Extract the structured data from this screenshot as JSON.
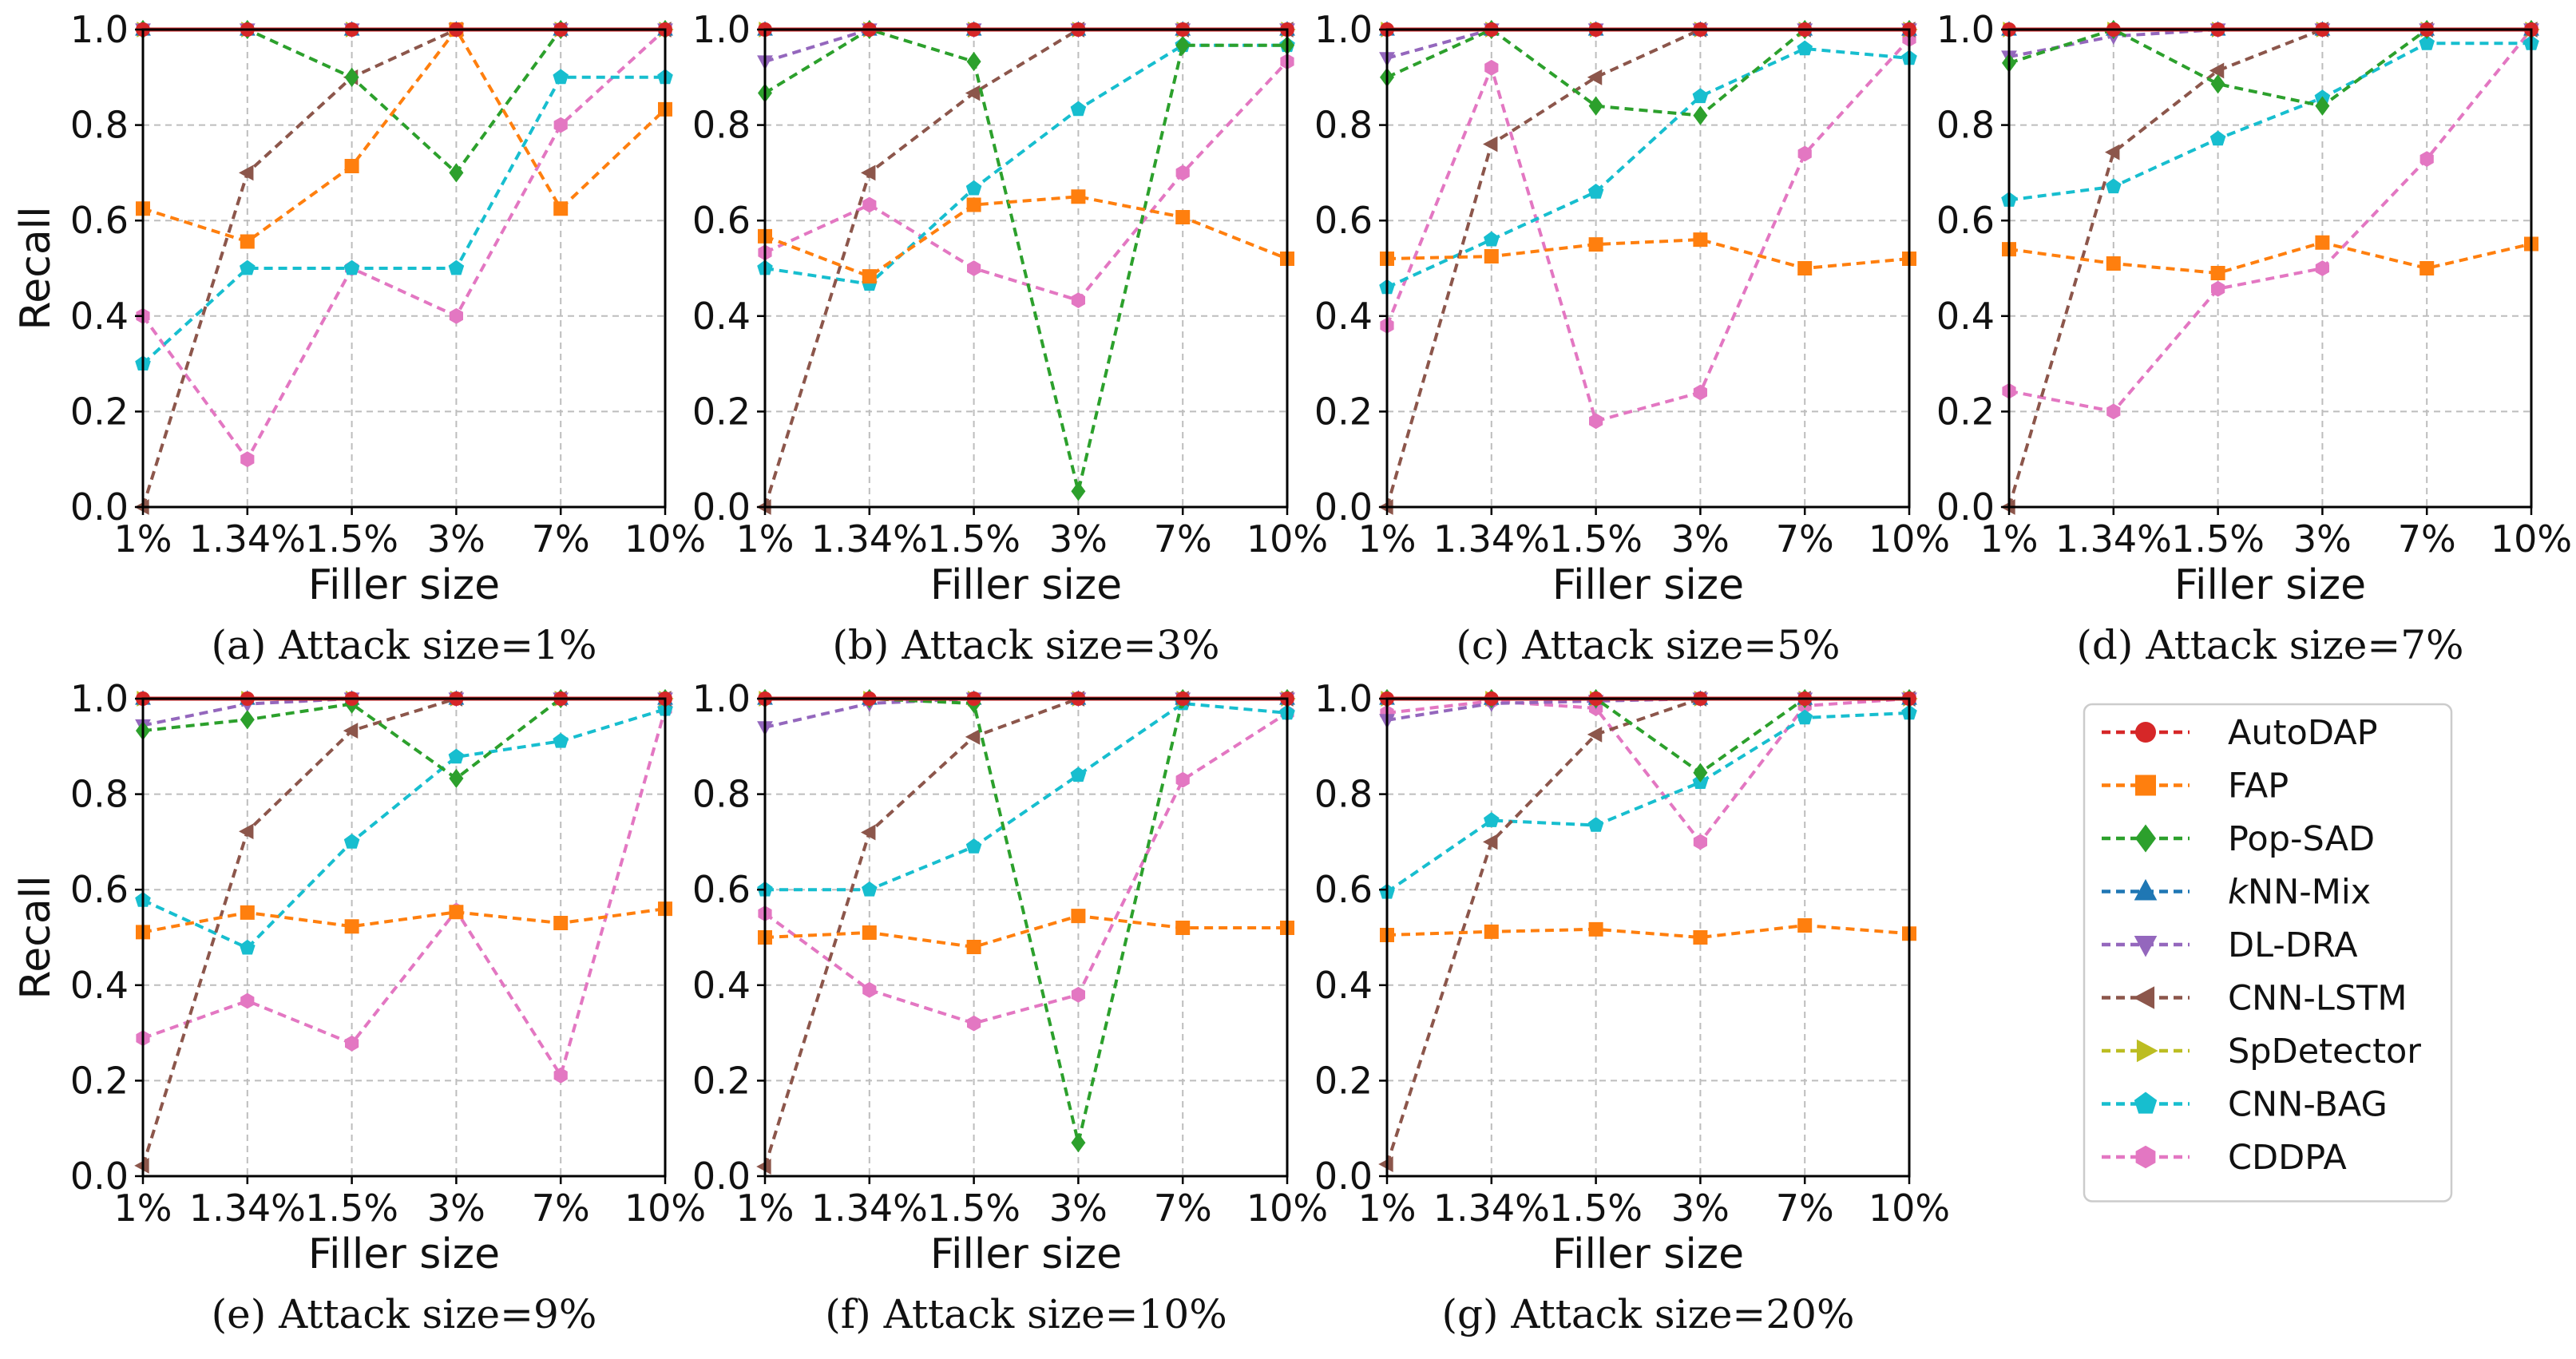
{
  "figure": {
    "x_ticks": [
      "1%",
      "1.34%",
      "1.5%",
      "3%",
      "7%",
      "10%"
    ],
    "y_ticks": [
      "0.0",
      "0.2",
      "0.4",
      "0.6",
      "0.8",
      "1.0"
    ],
    "xlabel": "Filler size",
    "ylabel": "Recall"
  },
  "series_styles": [
    {
      "name": "AutoDAP",
      "color": "#d62728",
      "marker": "circle"
    },
    {
      "name": "FAP",
      "color": "#ff7f0e",
      "marker": "square"
    },
    {
      "name": "Pop-SAD",
      "color": "#2ca02c",
      "marker": "diamond"
    },
    {
      "name": "kNN-Mix",
      "color": "#1f77b4",
      "marker": "triangle-up"
    },
    {
      "name": "DL-DRA",
      "color": "#9467bd",
      "marker": "triangle-down"
    },
    {
      "name": "CNN-LSTM",
      "color": "#8c564b",
      "marker": "triangle-left"
    },
    {
      "name": "SpDetector",
      "color": "#bcbd22",
      "marker": "triangle-right"
    },
    {
      "name": "CNN-BAG",
      "color": "#17becf",
      "marker": "pentagon"
    },
    {
      "name": "CDDPA",
      "color": "#e377c2",
      "marker": "hexagon"
    }
  ],
  "chart_data": [
    {
      "type": "line",
      "caption": "(a) Attack size=1%",
      "x": [
        "1%",
        "1.34%",
        "1.5%",
        "3%",
        "7%",
        "10%"
      ],
      "xlabel": "Filler size",
      "ylabel": "Recall",
      "ylim": [
        0,
        1
      ],
      "grid": true,
      "series": [
        {
          "name": "AutoDAP",
          "values": [
            1.0,
            1.0,
            1.0,
            1.0,
            1.0,
            1.0
          ]
        },
        {
          "name": "FAP",
          "values": [
            0.625,
            0.556,
            0.714,
            1.0,
            0.625,
            0.833
          ]
        },
        {
          "name": "Pop-SAD",
          "values": [
            1.0,
            1.0,
            0.9,
            0.7,
            1.0,
            1.0
          ]
        },
        {
          "name": "kNN-Mix",
          "values": [
            1.0,
            1.0,
            1.0,
            1.0,
            1.0,
            1.0
          ]
        },
        {
          "name": "DL-DRA",
          "values": [
            1.0,
            1.0,
            1.0,
            1.0,
            1.0,
            1.0
          ]
        },
        {
          "name": "CNN-LSTM",
          "values": [
            0.0,
            0.7,
            0.9,
            1.0,
            1.0,
            1.0
          ]
        },
        {
          "name": "SpDetector",
          "values": [
            1.0,
            1.0,
            1.0,
            1.0,
            1.0,
            1.0
          ]
        },
        {
          "name": "CNN-BAG",
          "values": [
            0.3,
            0.5,
            0.5,
            0.5,
            0.9,
            0.9
          ]
        },
        {
          "name": "CDDPA",
          "values": [
            0.4,
            0.1,
            0.5,
            0.4,
            0.8,
            1.0
          ]
        }
      ]
    },
    {
      "type": "line",
      "caption": "(b) Attack size=3%",
      "x": [
        "1%",
        "1.34%",
        "1.5%",
        "3%",
        "7%",
        "10%"
      ],
      "xlabel": "Filler size",
      "ylabel": "Recall",
      "ylim": [
        0,
        1
      ],
      "grid": true,
      "series": [
        {
          "name": "AutoDAP",
          "values": [
            1.0,
            1.0,
            1.0,
            1.0,
            1.0,
            1.0
          ]
        },
        {
          "name": "FAP",
          "values": [
            0.567,
            0.483,
            0.633,
            0.65,
            0.607,
            0.52
          ]
        },
        {
          "name": "Pop-SAD",
          "values": [
            0.867,
            1.0,
            0.933,
            0.033,
            0.967,
            0.967
          ]
        },
        {
          "name": "kNN-Mix",
          "values": [
            1.0,
            1.0,
            1.0,
            1.0,
            1.0,
            1.0
          ]
        },
        {
          "name": "DL-DRA",
          "values": [
            0.933,
            1.0,
            1.0,
            1.0,
            1.0,
            1.0
          ]
        },
        {
          "name": "CNN-LSTM",
          "values": [
            0.0,
            0.7,
            0.867,
            1.0,
            1.0,
            1.0
          ]
        },
        {
          "name": "SpDetector",
          "values": [
            1.0,
            1.0,
            1.0,
            1.0,
            1.0,
            1.0
          ]
        },
        {
          "name": "CNN-BAG",
          "values": [
            0.5,
            0.467,
            0.667,
            0.833,
            0.967,
            0.967
          ]
        },
        {
          "name": "CDDPA",
          "values": [
            0.533,
            0.633,
            0.5,
            0.433,
            0.7,
            0.933
          ]
        }
      ]
    },
    {
      "type": "line",
      "caption": "(c) Attack size=5%",
      "x": [
        "1%",
        "1.34%",
        "1.5%",
        "3%",
        "7%",
        "10%"
      ],
      "xlabel": "Filler size",
      "ylabel": "Recall",
      "ylim": [
        0,
        1
      ],
      "grid": true,
      "series": [
        {
          "name": "AutoDAP",
          "values": [
            1.0,
            1.0,
            1.0,
            1.0,
            1.0,
            1.0
          ]
        },
        {
          "name": "FAP",
          "values": [
            0.52,
            0.525,
            0.55,
            0.56,
            0.5,
            0.52
          ]
        },
        {
          "name": "Pop-SAD",
          "values": [
            0.9,
            1.0,
            0.84,
            0.82,
            1.0,
            1.0
          ]
        },
        {
          "name": "kNN-Mix",
          "values": [
            1.0,
            1.0,
            1.0,
            1.0,
            1.0,
            1.0
          ]
        },
        {
          "name": "DL-DRA",
          "values": [
            0.94,
            1.0,
            1.0,
            1.0,
            1.0,
            1.0
          ]
        },
        {
          "name": "CNN-LSTM",
          "values": [
            0.0,
            0.76,
            0.9,
            1.0,
            1.0,
            1.0
          ]
        },
        {
          "name": "SpDetector",
          "values": [
            1.0,
            1.0,
            1.0,
            1.0,
            1.0,
            1.0
          ]
        },
        {
          "name": "CNN-BAG",
          "values": [
            0.46,
            0.56,
            0.66,
            0.86,
            0.96,
            0.94
          ]
        },
        {
          "name": "CDDPA",
          "values": [
            0.38,
            0.92,
            0.18,
            0.24,
            0.74,
            0.98
          ]
        }
      ]
    },
    {
      "type": "line",
      "caption": "(d) Attack size=7%",
      "x": [
        "1%",
        "1.34%",
        "1.5%",
        "3%",
        "7%",
        "10%"
      ],
      "xlabel": "Filler size",
      "ylabel": "Recall",
      "ylim": [
        0,
        1
      ],
      "grid": true,
      "series": [
        {
          "name": "AutoDAP",
          "values": [
            1.0,
            1.0,
            1.0,
            1.0,
            1.0,
            1.0
          ]
        },
        {
          "name": "FAP",
          "values": [
            0.54,
            0.51,
            0.49,
            0.554,
            0.5,
            0.551
          ]
        },
        {
          "name": "Pop-SAD",
          "values": [
            0.93,
            1.0,
            0.886,
            0.84,
            1.0,
            1.0
          ]
        },
        {
          "name": "kNN-Mix",
          "values": [
            1.0,
            1.0,
            1.0,
            1.0,
            1.0,
            1.0
          ]
        },
        {
          "name": "DL-DRA",
          "values": [
            0.943,
            0.986,
            1.0,
            1.0,
            1.0,
            1.0
          ]
        },
        {
          "name": "CNN-LSTM",
          "values": [
            0.0,
            0.743,
            0.914,
            1.0,
            1.0,
            1.0
          ]
        },
        {
          "name": "SpDetector",
          "values": [
            1.0,
            1.0,
            1.0,
            1.0,
            1.0,
            1.0
          ]
        },
        {
          "name": "CNN-BAG",
          "values": [
            0.643,
            0.671,
            0.771,
            0.857,
            0.971,
            0.971
          ]
        },
        {
          "name": "CDDPA",
          "values": [
            0.243,
            0.2,
            0.457,
            0.5,
            0.729,
            1.0
          ]
        }
      ]
    },
    {
      "type": "line",
      "caption": "(e) Attack size=9%",
      "x": [
        "1%",
        "1.34%",
        "1.5%",
        "3%",
        "7%",
        "10%"
      ],
      "xlabel": "Filler size",
      "ylabel": "Recall",
      "ylim": [
        0,
        1
      ],
      "grid": true,
      "series": [
        {
          "name": "AutoDAP",
          "values": [
            1.0,
            1.0,
            1.0,
            1.0,
            1.0,
            1.0
          ]
        },
        {
          "name": "FAP",
          "values": [
            0.511,
            0.552,
            0.523,
            0.553,
            0.53,
            0.56
          ]
        },
        {
          "name": "Pop-SAD",
          "values": [
            0.933,
            0.956,
            0.989,
            0.833,
            1.0,
            1.0
          ]
        },
        {
          "name": "kNN-Mix",
          "values": [
            1.0,
            1.0,
            1.0,
            1.0,
            1.0,
            1.0
          ]
        },
        {
          "name": "DL-DRA",
          "values": [
            0.944,
            0.989,
            1.0,
            1.0,
            1.0,
            1.0
          ]
        },
        {
          "name": "CNN-LSTM",
          "values": [
            0.022,
            0.722,
            0.933,
            1.0,
            1.0,
            1.0
          ]
        },
        {
          "name": "SpDetector",
          "values": [
            1.0,
            1.0,
            1.0,
            1.0,
            1.0,
            1.0
          ]
        },
        {
          "name": "CNN-BAG",
          "values": [
            0.578,
            0.478,
            0.7,
            0.878,
            0.911,
            0.978
          ]
        },
        {
          "name": "CDDPA",
          "values": [
            0.289,
            0.367,
            0.278,
            0.556,
            0.211,
            0.978
          ]
        }
      ]
    },
    {
      "type": "line",
      "caption": "(f) Attack size=10%",
      "x": [
        "1%",
        "1.34%",
        "1.5%",
        "3%",
        "7%",
        "10%"
      ],
      "xlabel": "Filler size",
      "ylabel": "Recall",
      "ylim": [
        0,
        1
      ],
      "grid": true,
      "series": [
        {
          "name": "AutoDAP",
          "values": [
            1.0,
            1.0,
            1.0,
            1.0,
            1.0,
            1.0
          ]
        },
        {
          "name": "FAP",
          "values": [
            0.5,
            0.51,
            0.48,
            0.545,
            0.52,
            0.52
          ]
        },
        {
          "name": "Pop-SAD",
          "values": [
            1.0,
            1.0,
            0.99,
            0.07,
            1.0,
            1.0
          ]
        },
        {
          "name": "kNN-Mix",
          "values": [
            1.0,
            1.0,
            1.0,
            1.0,
            1.0,
            1.0
          ]
        },
        {
          "name": "DL-DRA",
          "values": [
            0.94,
            0.99,
            1.0,
            1.0,
            1.0,
            1.0
          ]
        },
        {
          "name": "CNN-LSTM",
          "values": [
            0.02,
            0.72,
            0.92,
            1.0,
            1.0,
            1.0
          ]
        },
        {
          "name": "SpDetector",
          "values": [
            1.0,
            1.0,
            1.0,
            1.0,
            1.0,
            1.0
          ]
        },
        {
          "name": "CNN-BAG",
          "values": [
            0.6,
            0.6,
            0.69,
            0.84,
            0.99,
            0.97
          ]
        },
        {
          "name": "CDDPA",
          "values": [
            0.55,
            0.39,
            0.32,
            0.38,
            0.83,
            0.97
          ]
        }
      ]
    },
    {
      "type": "line",
      "caption": "(g) Attack size=20%",
      "x": [
        "1%",
        "1.34%",
        "1.5%",
        "3%",
        "7%",
        "10%"
      ],
      "xlabel": "Filler size",
      "ylabel": "Recall",
      "ylim": [
        0,
        1
      ],
      "grid": true,
      "series": [
        {
          "name": "AutoDAP",
          "values": [
            1.0,
            1.0,
            1.0,
            1.0,
            1.0,
            1.0
          ]
        },
        {
          "name": "FAP",
          "values": [
            0.505,
            0.512,
            0.517,
            0.5,
            0.525,
            0.508
          ]
        },
        {
          "name": "Pop-SAD",
          "values": [
            1.0,
            1.0,
            1.0,
            0.845,
            1.0,
            1.0
          ]
        },
        {
          "name": "kNN-Mix",
          "values": [
            1.0,
            1.0,
            1.0,
            1.0,
            1.0,
            1.0
          ]
        },
        {
          "name": "DL-DRA",
          "values": [
            0.955,
            0.99,
            0.995,
            1.0,
            1.0,
            1.0
          ]
        },
        {
          "name": "CNN-LSTM",
          "values": [
            0.025,
            0.7,
            0.925,
            1.0,
            1.0,
            1.0
          ]
        },
        {
          "name": "SpDetector",
          "values": [
            1.0,
            1.0,
            1.0,
            1.0,
            1.0,
            1.0
          ]
        },
        {
          "name": "CNN-BAG",
          "values": [
            0.595,
            0.745,
            0.735,
            0.825,
            0.96,
            0.97
          ]
        },
        {
          "name": "CDDPA",
          "values": [
            0.97,
            0.995,
            0.98,
            0.7,
            0.985,
            1.0
          ]
        }
      ]
    }
  ]
}
